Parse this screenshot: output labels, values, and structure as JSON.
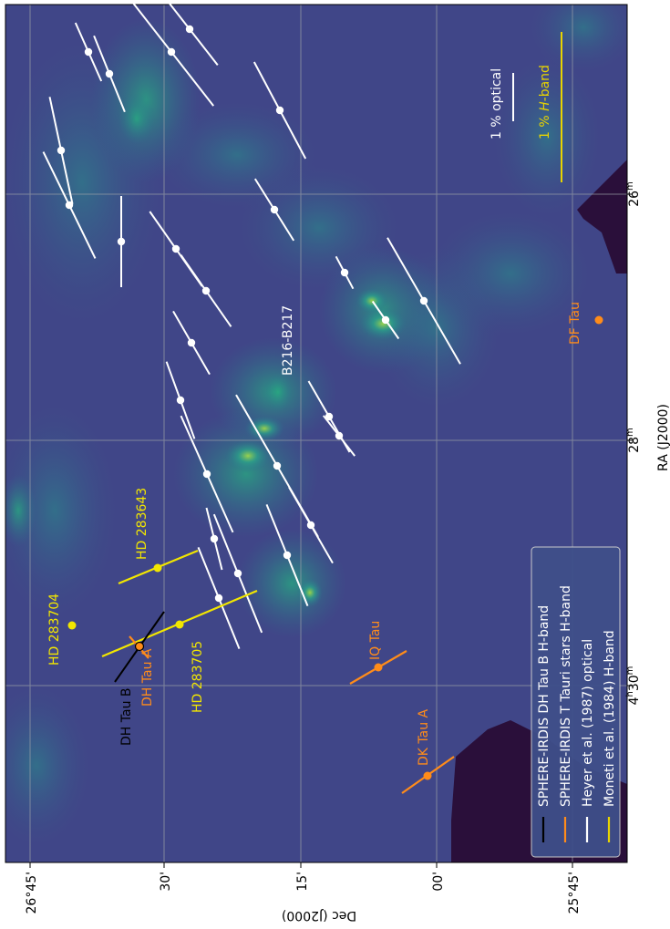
{
  "chart_data": {
    "type": "scatter",
    "xlabel": "RA (J2000)",
    "ylabel": "Dec (J2000)",
    "dec_ticks": [
      "26°45'",
      "30'",
      "15'",
      "00'",
      "25°45'"
    ],
    "ra_ticks": [
      {
        "main": "26",
        "sup": "m"
      },
      {
        "main": "28",
        "sup": "m"
      },
      {
        "main": "4",
        "sup": "h",
        "main2": "30",
        "sup2": "m"
      }
    ],
    "region_label": "B216-B217",
    "scale_bars": [
      {
        "label": "1 % optical",
        "color": "#ffffff"
      },
      {
        "label": "1 % H-band",
        "color": "#e8d400"
      }
    ],
    "stars": [
      {
        "name": "HD 283704",
        "color": "#f2e600"
      },
      {
        "name": "HD 283643",
        "color": "#f2e600"
      },
      {
        "name": "HD 283705",
        "color": "#f2e600"
      },
      {
        "name": "DH Tau A",
        "color": "#ff8c1a"
      },
      {
        "name": "DH Tau B",
        "color": "#000000"
      },
      {
        "name": "IQ Tau",
        "color": "#ff8c1a"
      },
      {
        "name": "DK Tau A",
        "color": "#ff8c1a"
      },
      {
        "name": "DF Tau",
        "color": "#ff8c1a"
      }
    ],
    "legend": {
      "placement": "bottom-right",
      "entries": [
        {
          "label": "SPHERE-IRDIS DH Tau B H-band",
          "color": "#000000"
        },
        {
          "label": "SPHERE-IRDIS T Tauri stars H-band",
          "color": "#ff8c1a"
        },
        {
          "label": "Heyer et al. (1987) optical",
          "color": "#ffffff"
        },
        {
          "label": "Moneti et al. (1984) H-band",
          "color": "#e8d400"
        }
      ]
    },
    "grid": true
  }
}
